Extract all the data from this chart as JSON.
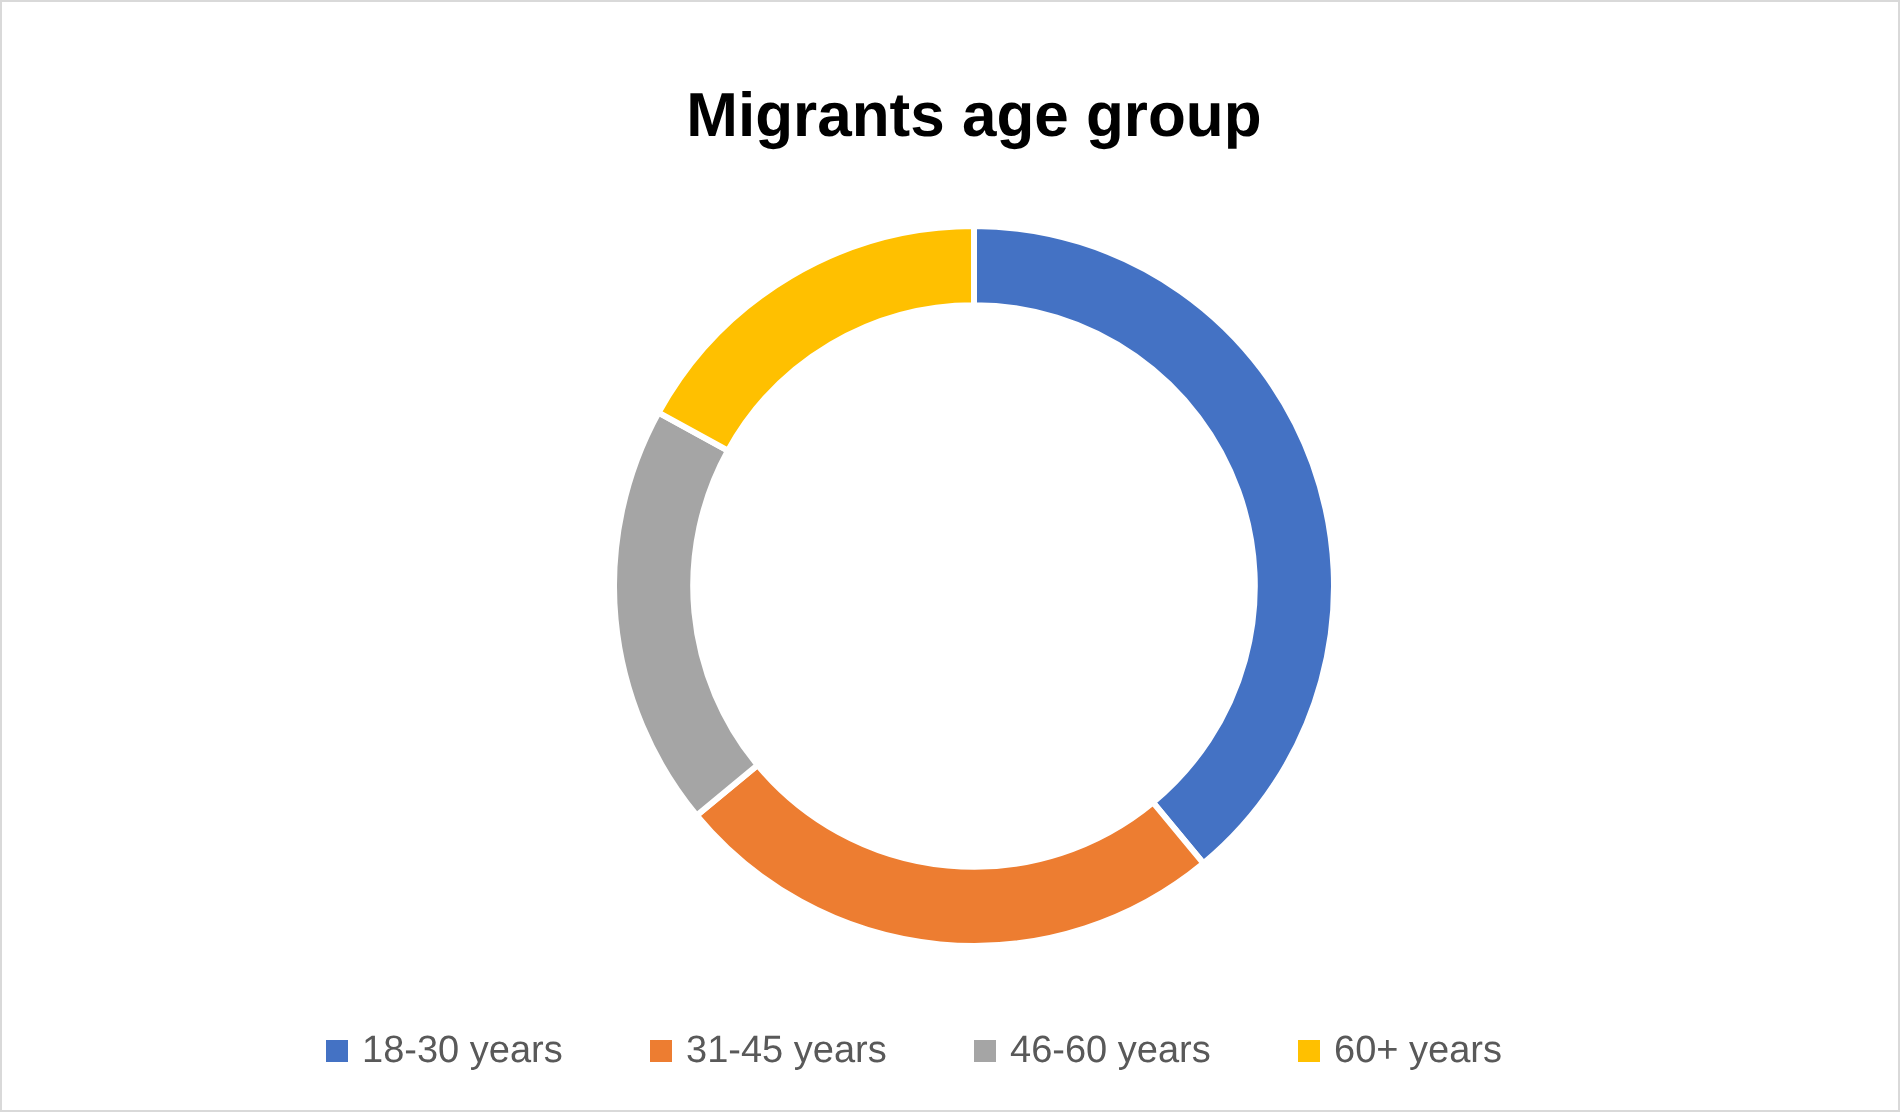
{
  "chart_data": {
    "type": "donut",
    "title": "Migrants age group",
    "categories": [
      "18-30 years",
      "31-45 years",
      "46-60 years",
      "60+ years"
    ],
    "values": [
      39,
      25,
      19,
      17
    ],
    "colors": [
      "#4472c4",
      "#ed7d31",
      "#a5a5a5",
      "#ffc000"
    ],
    "legend": "bottom"
  }
}
